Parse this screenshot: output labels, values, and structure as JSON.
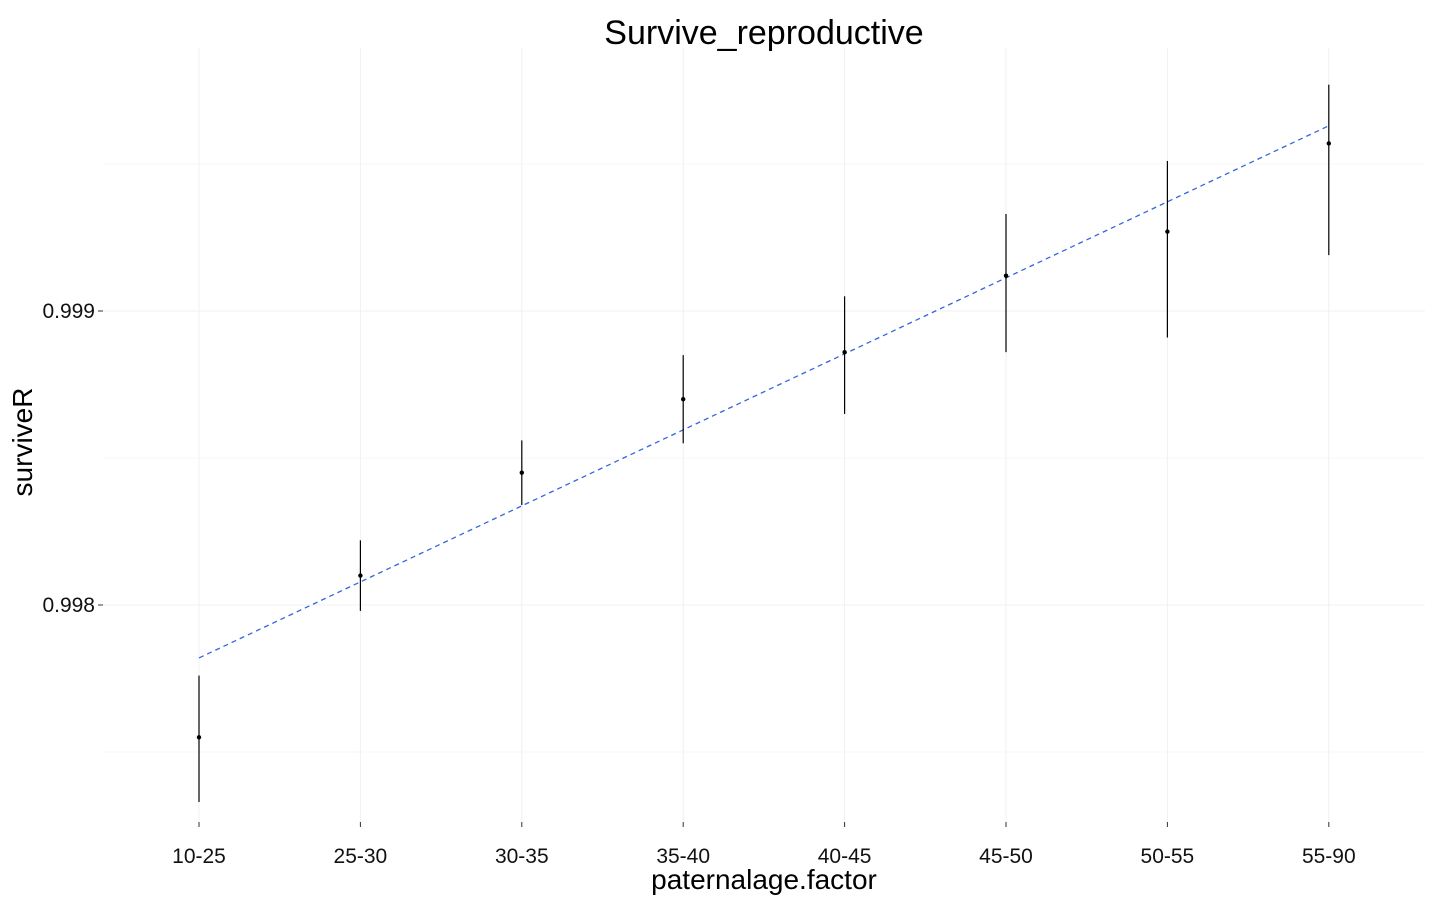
{
  "chart_data": {
    "type": "scatter",
    "title": "Survive_reproductive",
    "xlabel": "paternalage.factor",
    "ylabel": "surviveR",
    "categories": [
      "10-25",
      "25-30",
      "30-35",
      "35-40",
      "40-45",
      "45-50",
      "50-55",
      "55-90"
    ],
    "series": [
      {
        "values": [
          0.99755,
          0.9981,
          0.99845,
          0.9987,
          0.99886,
          0.99912,
          0.99927,
          0.99957
        ],
        "lower": [
          0.99733,
          0.99798,
          0.99834,
          0.99855,
          0.99865,
          0.99886,
          0.99891,
          0.99919
        ],
        "upper": [
          0.99776,
          0.99822,
          0.99856,
          0.99885,
          0.99905,
          0.99933,
          0.99951,
          0.99977
        ]
      }
    ],
    "trend_line": {
      "style": "dashed",
      "start": 0.99782,
      "end": 0.99963
    },
    "yticks": [
      0.998,
      0.999
    ],
    "ytick_labels": [
      "0.998",
      "0.999"
    ],
    "ylim": [
      0.99725,
      0.99985
    ],
    "grid": true,
    "colors": {
      "points": "#000000",
      "trend": "#3366dd",
      "grid": "#f0f0f0"
    }
  }
}
